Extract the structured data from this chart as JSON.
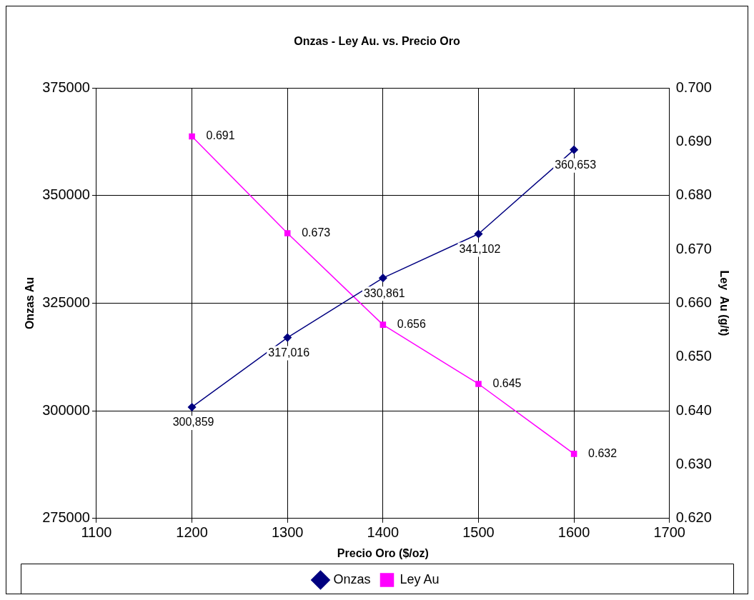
{
  "chart_data": {
    "type": "line",
    "title": "Onzas - Ley Au. vs. Precio Oro",
    "xlabel": "Precio Oro ($/oz)",
    "ylabel": "Onzas Au",
    "y2label": "Ley  Au (g/t)",
    "x": [
      1200,
      1300,
      1400,
      1500,
      1600
    ],
    "series": [
      {
        "name": "Onzas",
        "color": "#000080",
        "marker": "diamond",
        "axis": "y",
        "values": [
          300859,
          317016,
          330861,
          341102,
          360653
        ],
        "value_labels": [
          "300,859",
          "317,016",
          "330,861",
          "341,102",
          "360,653"
        ]
      },
      {
        "name": "Ley Au",
        "color": "#ff00ff",
        "marker": "square",
        "axis": "y2",
        "values": [
          0.691,
          0.673,
          0.656,
          0.645,
          0.632
        ],
        "value_labels": [
          "0.691",
          "0.673",
          "0.656",
          "0.645",
          "0.632"
        ]
      }
    ],
    "xlim": [
      1100,
      1700
    ],
    "xticks": [
      1100,
      1200,
      1300,
      1400,
      1500,
      1600,
      1700
    ],
    "ylim": [
      275000,
      375000
    ],
    "yticks": [
      275000,
      300000,
      325000,
      350000,
      375000
    ],
    "y2lim": [
      0.62,
      0.7
    ],
    "y2ticks": [
      {
        "value": 0.62,
        "label": "0.620"
      },
      {
        "value": 0.63,
        "label": "0.630"
      },
      {
        "value": 0.64,
        "label": "0.640"
      },
      {
        "value": 0.65,
        "label": "0.650"
      },
      {
        "value": 0.66,
        "label": "0.660"
      },
      {
        "value": 0.67,
        "label": "0.670"
      },
      {
        "value": 0.68,
        "label": "0.680"
      },
      {
        "value": 0.69,
        "label": "0.690"
      },
      {
        "value": 0.7,
        "label": "0.700"
      }
    ],
    "grid": true,
    "legend": "bottom",
    "line_style": "solid"
  }
}
